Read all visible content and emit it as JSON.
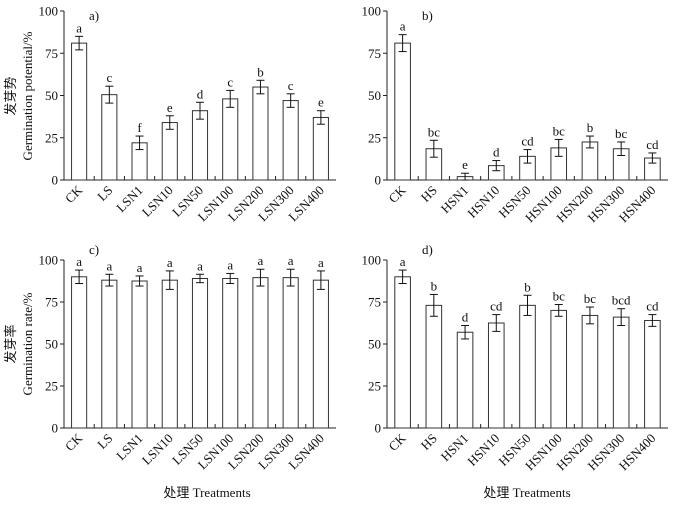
{
  "chart_data": [
    {
      "type": "bar",
      "panel_label": "a)",
      "ylabel_cn": "发芽势",
      "ylabel": "Germination potential/%",
      "xlabel": "",
      "ylim": [
        0,
        100
      ],
      "yticks": [
        "0",
        "25",
        "50",
        "75",
        "100"
      ],
      "categories": [
        "CK",
        "LS",
        "LSN1",
        "LSN10",
        "LSN50",
        "LSN100",
        "LSN200",
        "LSN300",
        "LSN400"
      ],
      "values": [
        81,
        50.5,
        22,
        34,
        41,
        48,
        55,
        47,
        37
      ],
      "errors": [
        4,
        5,
        4,
        4,
        5,
        5,
        4,
        4,
        4
      ],
      "letters": [
        "a",
        "c",
        "f",
        "e",
        "d",
        "c",
        "b",
        "c",
        "e"
      ]
    },
    {
      "type": "bar",
      "panel_label": "b)",
      "xlabel": "",
      "ylim": [
        0,
        100
      ],
      "yticks": [
        "0",
        "25",
        "50",
        "75",
        "100"
      ],
      "categories": [
        "CK",
        "HS",
        "HSN1",
        "HSN10",
        "HSN50",
        "HSN100",
        "HSN200",
        "HSN300",
        "HSN400"
      ],
      "values": [
        81,
        18.5,
        2,
        8.5,
        14,
        19,
        22.5,
        18.5,
        13
      ],
      "errors": [
        5,
        5,
        2,
        3,
        4,
        5,
        3.5,
        4,
        3
      ],
      "letters": [
        "a",
        "bc",
        "e",
        "d",
        "cd",
        "bc",
        "b",
        "bc",
        "cd"
      ]
    },
    {
      "type": "bar",
      "panel_label": "c)",
      "ylabel_cn": "发芽率",
      "ylabel": "Germination rate/%",
      "xlabel": "处理 Treatments",
      "ylim": [
        0,
        100
      ],
      "yticks": [
        "0",
        "25",
        "50",
        "75",
        "100"
      ],
      "categories": [
        "CK",
        "LS",
        "LSN1",
        "LSN10",
        "LSN50",
        "LSN100",
        "LSN200",
        "LSN300",
        "LSN400"
      ],
      "values": [
        90,
        88,
        87.5,
        88,
        89,
        89,
        89.5,
        89.5,
        88
      ],
      "errors": [
        4,
        3.5,
        3,
        5.5,
        2.5,
        3,
        5,
        5,
        5.5
      ],
      "letters": [
        "a",
        "a",
        "a",
        "a",
        "a",
        "a",
        "a",
        "a",
        "a"
      ]
    },
    {
      "type": "bar",
      "panel_label": "d)",
      "xlabel": "处理 Treatments",
      "ylim": [
        0,
        100
      ],
      "yticks": [
        "0",
        "25",
        "50",
        "75",
        "100"
      ],
      "categories": [
        "CK",
        "HS",
        "HSN1",
        "HSN10",
        "HSN50",
        "HSN100",
        "HSN200",
        "HSN300",
        "HSN400"
      ],
      "values": [
        90,
        73,
        57,
        62.5,
        73,
        70,
        67,
        66,
        64
      ],
      "errors": [
        4,
        6.5,
        4,
        5,
        6,
        3.5,
        5,
        5,
        3.5
      ],
      "letters": [
        "a",
        "b",
        "d",
        "cd",
        "b",
        "bc",
        "bc",
        "bcd",
        "cd"
      ]
    }
  ]
}
